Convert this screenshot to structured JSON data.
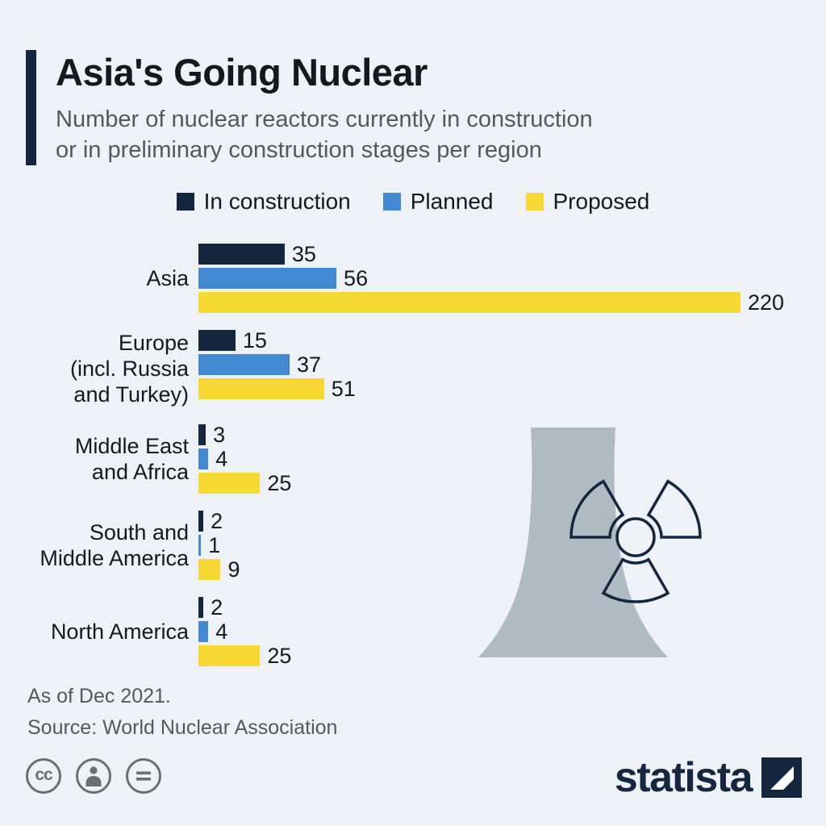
{
  "colors": {
    "background": "#eef2f6",
    "accent": "#15273e",
    "in_construction": "#15273e",
    "planned": "#4288d2",
    "proposed": "#f7d832",
    "text_dark": "#15191e",
    "text_gray": "#56575b",
    "tower_gray": "#b0bac3"
  },
  "header": {
    "title": "Asia's Going Nuclear",
    "subtitle_line1": "Number of nuclear reactors currently in construction",
    "subtitle_line2": "or in preliminary construction stages per region"
  },
  "chart_data": {
    "type": "bar",
    "orientation": "horizontal",
    "title": "Asia's Going Nuclear",
    "subtitle": "Number of nuclear reactors currently in construction or in preliminary construction stages per region",
    "categories": [
      "Asia",
      "Europe (incl. Russia and Turkey)",
      "Middle East and Africa",
      "South and Middle America",
      "North America"
    ],
    "category_lines": [
      [
        "Asia"
      ],
      [
        "Europe",
        "(incl. Russia",
        "and Turkey)"
      ],
      [
        "Middle East",
        "and Africa"
      ],
      [
        "South and",
        "Middle America"
      ],
      [
        "North America"
      ]
    ],
    "series": [
      {
        "name": "In construction",
        "color": "#15273e",
        "values": [
          35,
          15,
          3,
          2,
          2
        ]
      },
      {
        "name": "Planned",
        "color": "#4288d2",
        "values": [
          56,
          37,
          4,
          1,
          4
        ]
      },
      {
        "name": "Proposed",
        "color": "#f7d832",
        "values": [
          220,
          51,
          25,
          9,
          25
        ]
      }
    ],
    "xlim": [
      0,
      220
    ],
    "value_labels": true,
    "legend_position": "top",
    "grid": false
  },
  "legend": [
    {
      "label": "In construction",
      "color": "#15273e"
    },
    {
      "label": "Planned",
      "color": "#4288d2"
    },
    {
      "label": "Proposed",
      "color": "#f7d832"
    }
  ],
  "graphic": {
    "name": "nuclear-cooling-tower-with-radiation-symbol"
  },
  "footer": {
    "note": "As of Dec 2021.",
    "source": "Source: World Nuclear Association",
    "brand": "statista",
    "license_icons": [
      "creative-commons",
      "attribution",
      "no-derivatives"
    ],
    "cc_letters": "cc"
  }
}
